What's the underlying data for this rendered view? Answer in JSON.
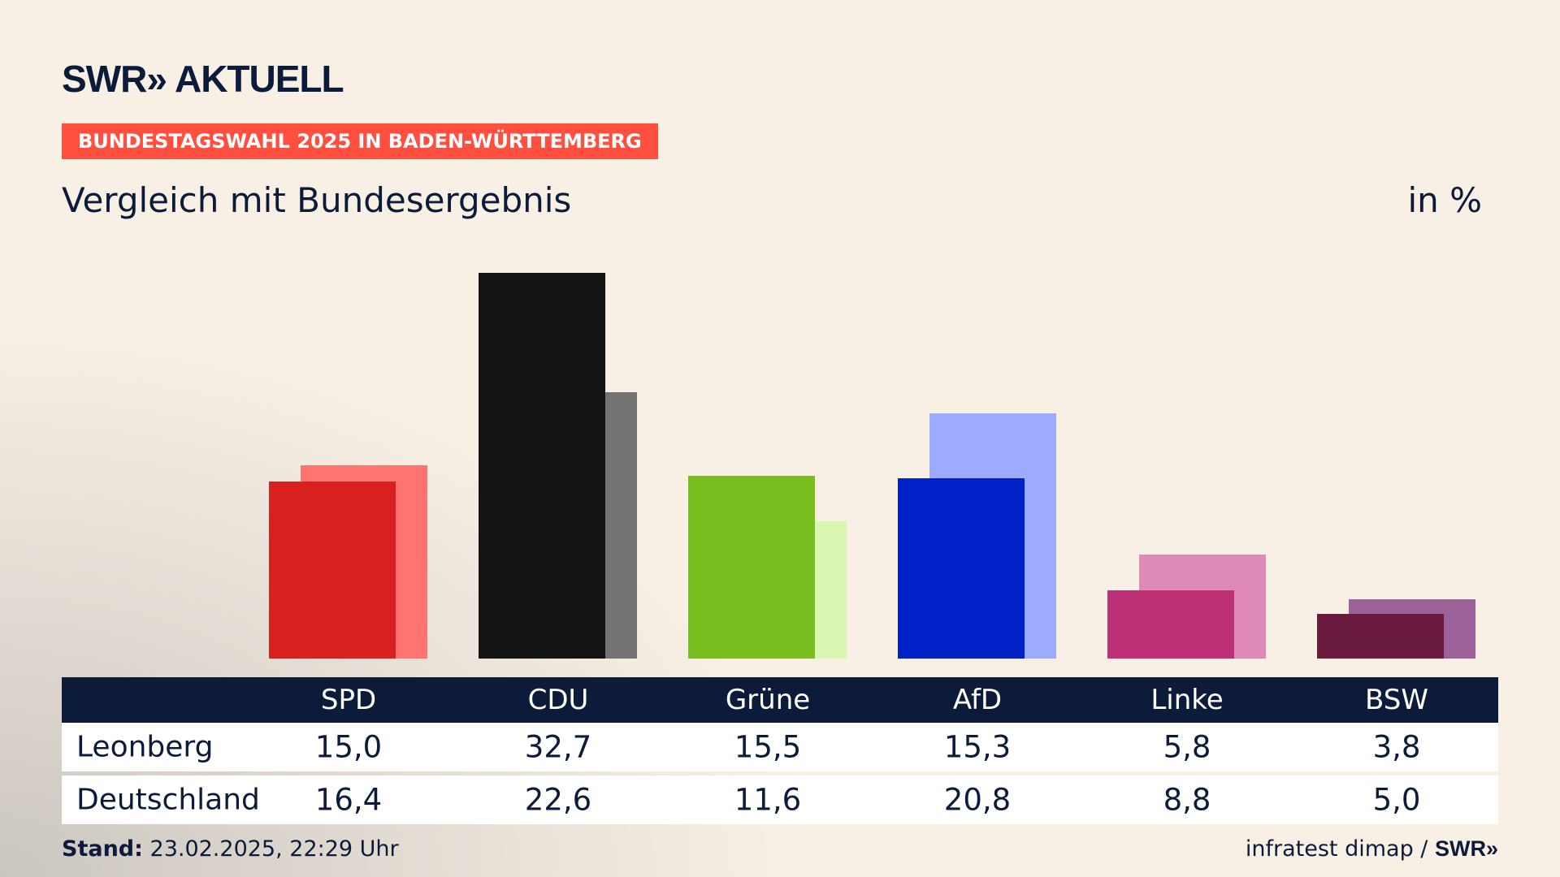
{
  "logo": "SWR» AKTUELL",
  "banner": "BUNDESTAGSWAHL 2025 IN BADEN-WÜRTTEMBERG",
  "subtitle": "Vergleich mit Bundesergebnis",
  "unit": "in %",
  "chart_data": {
    "type": "bar",
    "title": "Vergleich mit Bundesergebnis",
    "ylabel": "in %",
    "categories": [
      "SPD",
      "CDU",
      "Grüne",
      "AfD",
      "Linke",
      "BSW"
    ],
    "series": [
      {
        "name": "Leonberg",
        "values": [
          15.0,
          32.7,
          15.5,
          15.3,
          5.8,
          3.8
        ],
        "display": [
          "15,0",
          "32,7",
          "15,5",
          "15,3",
          "5,8",
          "3,8"
        ],
        "colors": [
          "#d8201e",
          "#141414",
          "#78be1e",
          "#0021c8",
          "#bd3075",
          "#6b1a3f"
        ]
      },
      {
        "name": "Deutschland",
        "values": [
          16.4,
          22.6,
          11.6,
          20.8,
          8.8,
          5.0
        ],
        "display": [
          "16,4",
          "22,6",
          "11,6",
          "20,8",
          "8,8",
          "5,0"
        ],
        "colors": [
          "#ff7470",
          "#747372",
          "#d9f7b0",
          "#9dabff",
          "#de89b6",
          "#9b6198"
        ]
      }
    ]
  },
  "footer": {
    "label": "Stand:",
    "value": "23.02.2025, 22:29 Uhr",
    "source": "infratest dimap / ",
    "source_logo": "SWR»"
  }
}
